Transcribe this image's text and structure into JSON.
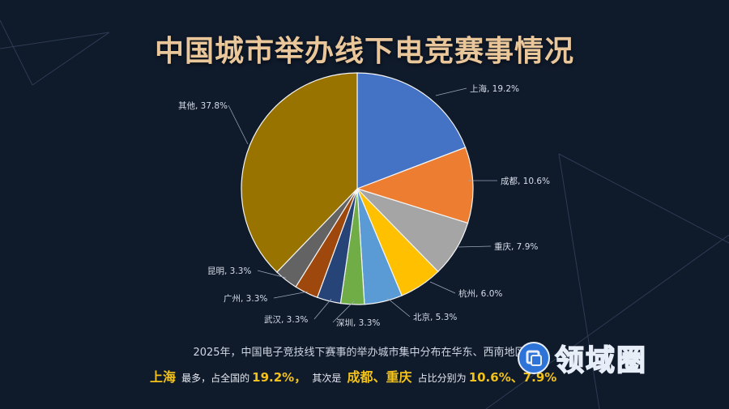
{
  "title": "中国城市举办线下电竞赛事情况",
  "chart_data": {
    "type": "pie",
    "title": "中国城市举办线下电竞赛事情况",
    "slices": [
      {
        "name": "上海",
        "value": 19.2,
        "label": "上海, 19.2%",
        "color": "#4472c4"
      },
      {
        "name": "成都",
        "value": 10.6,
        "label": "成都, 10.6%",
        "color": "#ed7d31"
      },
      {
        "name": "重庆",
        "value": 7.9,
        "label": "重庆, 7.9%",
        "color": "#a5a5a5"
      },
      {
        "name": "杭州",
        "value": 6.0,
        "label": "杭州, 6.0%",
        "color": "#ffc000"
      },
      {
        "name": "北京",
        "value": 5.3,
        "label": "北京, 5.3%",
        "color": "#5b9bd5"
      },
      {
        "name": "深圳",
        "value": 3.3,
        "label": "深圳, 3.3%",
        "color": "#70ad47"
      },
      {
        "name": "武汉",
        "value": 3.3,
        "label": "武汉, 3.3%",
        "color": "#264478"
      },
      {
        "name": "广州",
        "value": 3.3,
        "label": "广州, 3.3%",
        "color": "#9e480e"
      },
      {
        "name": "昆明",
        "value": 3.3,
        "label": "昆明, 3.3%",
        "color": "#636363"
      },
      {
        "name": "其他",
        "value": 37.8,
        "label": "其他, 37.8%",
        "color": "#997300"
      }
    ]
  },
  "summary": {
    "line1": "2025年，中国电子竞技线下赛事的举办城市集中分布在华东、西南地区。",
    "city1": "上海",
    "text_a": "最多，占全国的",
    "pct1": "19.2%，",
    "text_b": "其次是",
    "cities2": "成都、重庆",
    "text_c": "占比分别为",
    "pcts2": "10.6%、7.9%"
  },
  "watermark": {
    "text": "领域圈"
  },
  "colors": {
    "background": "#0f1a2b",
    "title": "#e9c79a",
    "highlight": "#f2c21b",
    "brand": "#2d73d8"
  }
}
